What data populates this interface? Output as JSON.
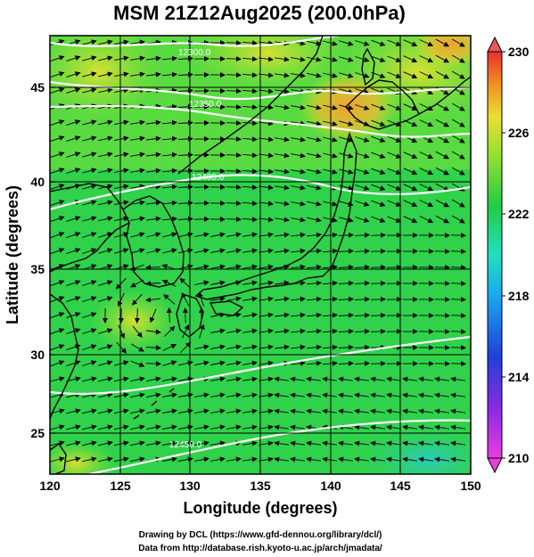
{
  "title": "MSM 21Z12Aug2025 (200.0hPa)",
  "x_axis": {
    "label": "Longitude (degrees)",
    "range": [
      120,
      150
    ],
    "ticks": [
      "120",
      "125",
      "130",
      "135",
      "140",
      "145",
      "150"
    ]
  },
  "y_axis": {
    "label": "Latitude  (degrees)",
    "range": [
      22.4,
      47.6
    ],
    "ticks": [
      "25",
      "30",
      "35",
      "40",
      "45"
    ]
  },
  "colorbar": {
    "min": 210,
    "max": 230,
    "ticks": [
      "210",
      "214",
      "218",
      "222",
      "226",
      "230"
    ]
  },
  "contour_labels": [
    "12300.0",
    "12350.0",
    "12400.0",
    "12450.0",
    "12500.0"
  ],
  "credits": [
    "Drawing by DCL (https://www.gfd-dennou.org/library/dcl/)",
    "Data from http://database.rish.kyoto-u.ac.jp/arch/jmadata/"
  ],
  "colors": {
    "field_main": "#2fd24a",
    "field_light": "#7be03a",
    "field_yellow": "#c9e52c",
    "field_orange": "#f0a030",
    "field_teal": "#2ed0b4",
    "contour": "#ffffff",
    "vectors": "#000000"
  }
}
